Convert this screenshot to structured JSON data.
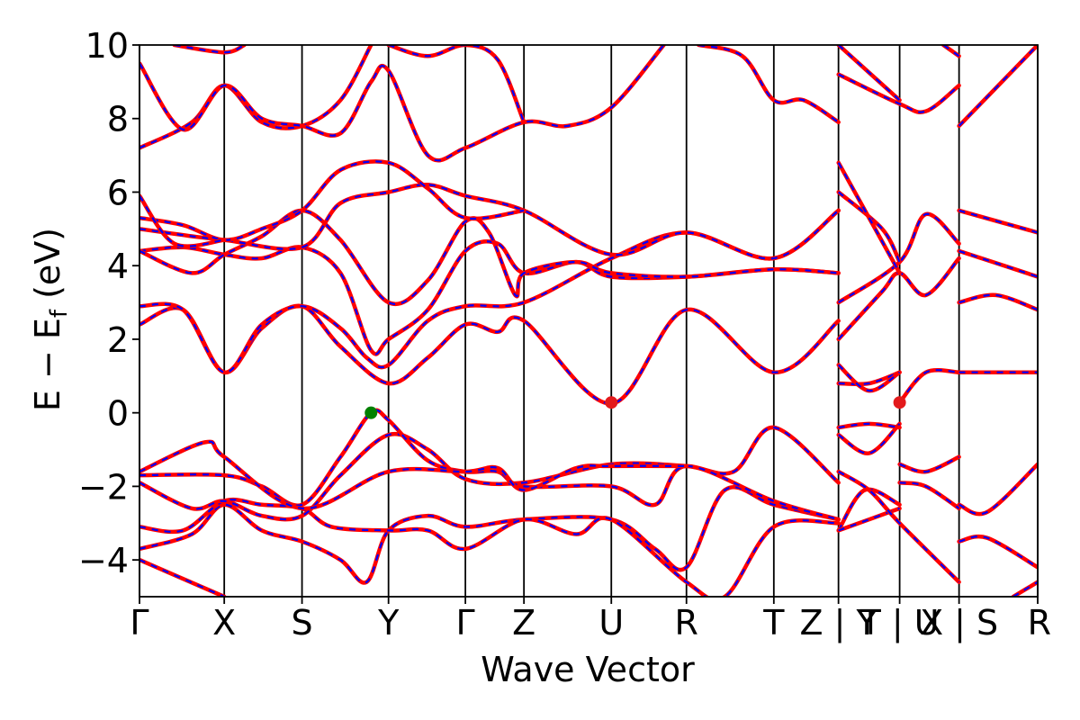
{
  "chart_data": {
    "type": "line",
    "title": "",
    "xlabel": "Wave Vector",
    "ylabel": "E − E",
    "ylabel_sub": "f",
    "ylabel_unit": "(eV)",
    "ylim": [
      -5,
      10
    ],
    "yticks": [
      -4,
      -2,
      0,
      2,
      4,
      6,
      8,
      10
    ],
    "ytick_labels": [
      "−4",
      "−2",
      "0",
      "2",
      "4",
      "6",
      "8",
      "10"
    ],
    "xlim": [
      0,
      10.28
    ],
    "kpoint_positions": [
      0,
      0.97,
      1.86,
      2.85,
      3.73,
      4.4,
      5.4,
      6.26,
      7.26,
      8.0,
      8.7,
      9.38,
      10.28
    ],
    "kpoint_labels": [
      "Γ",
      "X",
      "S",
      "Y",
      "Γ",
      "Z",
      "U",
      "R",
      "T",
      "Z | Y",
      "T | U",
      "X | S",
      "R"
    ],
    "segment_breaks": [
      8.0,
      8.7,
      9.38
    ],
    "series_colors": {
      "up": "#ff0000",
      "down": "#0000ff"
    },
    "vbm": {
      "x": 2.65,
      "y": 0.0,
      "color": "#008000"
    },
    "cbm": [
      {
        "x": 5.4,
        "y": 0.28,
        "color": "#e31a1c"
      },
      {
        "x": 8.7,
        "y": 0.28,
        "color": "#e31a1c"
      }
    ],
    "bands": [
      [
        [
          0,
          -4.0
        ],
        [
          0.97,
          -5.0
        ]
      ],
      [
        [
          0,
          -3.7
        ],
        [
          0.6,
          -3.3
        ],
        [
          0.97,
          -2.5
        ],
        [
          1.4,
          -3.2
        ],
        [
          1.86,
          -3.5
        ],
        [
          2.3,
          -4.0
        ],
        [
          2.6,
          -4.6
        ],
        [
          2.85,
          -3.2
        ],
        [
          3.3,
          -2.8
        ],
        [
          3.73,
          -3.1
        ],
        [
          4.4,
          -2.9
        ],
        [
          5.4,
          -2.9
        ],
        [
          5.9,
          -3.7
        ],
        [
          6.26,
          -4.2
        ],
        [
          6.7,
          -2.1
        ],
        [
          7.26,
          -2.5
        ],
        [
          8.0,
          -2.9
        ]
      ],
      [
        [
          0,
          -3.1
        ],
        [
          0.5,
          -3.2
        ],
        [
          0.97,
          -2.4
        ],
        [
          1.4,
          -2.5
        ],
        [
          1.86,
          -2.6
        ],
        [
          2.2,
          -3.1
        ],
        [
          2.85,
          -3.2
        ],
        [
          3.3,
          -3.2
        ],
        [
          3.73,
          -3.7
        ],
        [
          4.4,
          -2.9
        ],
        [
          5.0,
          -3.3
        ],
        [
          5.4,
          -2.9
        ],
        [
          6.26,
          -4.6
        ],
        [
          6.7,
          -5.0
        ],
        [
          7.26,
          -3.1
        ],
        [
          8.0,
          -3.0
        ]
      ],
      [
        [
          0,
          -1.9
        ],
        [
          0.6,
          -2.6
        ],
        [
          0.97,
          -2.4
        ],
        [
          1.4,
          -2.8
        ],
        [
          1.86,
          -2.8
        ],
        [
          2.3,
          -1.7
        ],
        [
          2.85,
          -0.6
        ],
        [
          3.3,
          -1.0
        ],
        [
          3.73,
          -1.8
        ],
        [
          4.4,
          -1.9
        ],
        [
          5.4,
          -1.4
        ],
        [
          6.26,
          -1.45
        ],
        [
          6.8,
          -1.6
        ],
        [
          7.26,
          -0.4
        ],
        [
          8.0,
          -1.9
        ]
      ],
      [
        [
          0,
          -1.7
        ],
        [
          0.97,
          -1.7
        ],
        [
          1.4,
          -2.0
        ],
        [
          1.86,
          -2.5
        ],
        [
          2.3,
          -1.2
        ],
        [
          2.65,
          0.0
        ],
        [
          2.85,
          -0.2
        ],
        [
          3.3,
          -1.3
        ],
        [
          3.73,
          -1.6
        ],
        [
          4.1,
          -1.6
        ],
        [
          4.4,
          -2.0
        ],
        [
          5.4,
          -2.0
        ],
        [
          5.9,
          -2.5
        ],
        [
          6.26,
          -1.45
        ],
        [
          7.26,
          -2.4
        ],
        [
          8.0,
          -2.9
        ]
      ],
      [
        [
          0,
          -1.6
        ],
        [
          0.75,
          -0.8
        ],
        [
          0.97,
          -1.2
        ],
        [
          1.86,
          -2.6
        ],
        [
          2.85,
          -1.6
        ],
        [
          3.73,
          -1.6
        ],
        [
          4.1,
          -1.5
        ],
        [
          4.4,
          -2.1
        ],
        [
          5.0,
          -1.5
        ],
        [
          5.4,
          -1.45
        ],
        [
          6.26,
          -1.45
        ]
      ],
      [
        [
          0,
          2.4
        ],
        [
          0.5,
          2.8
        ],
        [
          0.97,
          1.1
        ],
        [
          1.4,
          2.3
        ],
        [
          1.86,
          2.9
        ],
        [
          2.3,
          1.8
        ],
        [
          2.85,
          0.8
        ],
        [
          3.3,
          1.5
        ],
        [
          3.73,
          2.4
        ],
        [
          4.1,
          2.2
        ],
        [
          4.4,
          2.5
        ],
        [
          5.4,
          0.25
        ],
        [
          6.26,
          2.8
        ],
        [
          7.26,
          1.1
        ],
        [
          8.0,
          2.5
        ]
      ],
      [
        [
          0,
          2.9
        ],
        [
          0.5,
          2.8
        ],
        [
          0.97,
          1.1
        ],
        [
          1.4,
          2.4
        ],
        [
          1.86,
          2.9
        ],
        [
          2.3,
          2.3
        ],
        [
          2.6,
          1.5
        ],
        [
          2.85,
          1.3
        ],
        [
          3.3,
          2.5
        ],
        [
          3.73,
          2.9
        ],
        [
          4.4,
          3.0
        ],
        [
          5.4,
          4.2
        ],
        [
          6.26,
          4.9
        ],
        [
          7.26,
          4.2
        ],
        [
          8.0,
          5.5
        ]
      ],
      [
        [
          0,
          4.4
        ],
        [
          0.5,
          4.5
        ],
        [
          0.97,
          4.3
        ],
        [
          1.4,
          4.2
        ],
        [
          1.86,
          4.5
        ],
        [
          2.3,
          3.8
        ],
        [
          2.65,
          1.7
        ],
        [
          2.85,
          2.0
        ],
        [
          3.3,
          2.8
        ],
        [
          3.73,
          4.4
        ],
        [
          4.1,
          4.6
        ],
        [
          4.4,
          3.8
        ],
        [
          5.0,
          4.1
        ],
        [
          5.4,
          3.7
        ],
        [
          6.26,
          3.7
        ],
        [
          7.26,
          3.9
        ],
        [
          8.0,
          3.8
        ]
      ],
      [
        [
          0,
          4.4
        ],
        [
          0.6,
          3.8
        ],
        [
          0.97,
          4.3
        ],
        [
          1.4,
          4.8
        ],
        [
          1.86,
          5.5
        ],
        [
          2.3,
          4.7
        ],
        [
          2.85,
          3.0
        ],
        [
          3.3,
          3.6
        ],
        [
          3.73,
          5.2
        ],
        [
          4.0,
          4.9
        ],
        [
          4.3,
          3.2
        ],
        [
          4.4,
          3.8
        ],
        [
          5.0,
          4.1
        ],
        [
          5.4,
          3.8
        ],
        [
          6.26,
          3.7
        ],
        [
          7.26,
          3.9
        ],
        [
          8.0,
          3.8
        ]
      ],
      [
        [
          0,
          5.0
        ],
        [
          0.6,
          4.8
        ],
        [
          0.97,
          4.7
        ],
        [
          1.86,
          4.5
        ],
        [
          2.3,
          5.7
        ],
        [
          2.85,
          6.0
        ],
        [
          3.3,
          6.2
        ],
        [
          3.73,
          5.9
        ],
        [
          4.4,
          5.5
        ],
        [
          5.4,
          4.3
        ],
        [
          6.26,
          4.9
        ],
        [
          7.26,
          4.2
        ],
        [
          8.0,
          5.5
        ]
      ],
      [
        [
          0,
          5.3
        ],
        [
          0.5,
          5.1
        ],
        [
          0.97,
          4.7
        ],
        [
          1.4,
          5.0
        ],
        [
          1.86,
          5.5
        ],
        [
          2.3,
          6.6
        ],
        [
          2.85,
          6.8
        ],
        [
          3.3,
          6.1
        ],
        [
          3.73,
          5.3
        ],
        [
          4.4,
          5.5
        ]
      ],
      [
        [
          0,
          5.9
        ],
        [
          0.4,
          4.6
        ],
        [
          0.97,
          4.7
        ]
      ],
      [
        [
          0,
          7.2
        ],
        [
          0.6,
          7.9
        ],
        [
          0.97,
          8.9
        ],
        [
          1.4,
          7.9
        ],
        [
          1.86,
          7.8
        ],
        [
          2.3,
          8.5
        ],
        [
          2.65,
          10.0
        ]
      ],
      [
        [
          0,
          9.5
        ],
        [
          0.5,
          7.7
        ],
        [
          0.97,
          8.9
        ],
        [
          1.4,
          8.0
        ],
        [
          1.86,
          7.8
        ],
        [
          2.3,
          7.6
        ],
        [
          2.65,
          9.0
        ],
        [
          2.85,
          9.3
        ],
        [
          3.3,
          7.0
        ],
        [
          3.73,
          7.2
        ],
        [
          4.4,
          7.9
        ],
        [
          4.9,
          7.8
        ],
        [
          5.4,
          8.3
        ],
        [
          6.0,
          10.0
        ]
      ],
      [
        [
          0.4,
          10.0
        ],
        [
          0.97,
          9.8
        ],
        [
          1.2,
          10.0
        ]
      ],
      [
        [
          2.85,
          10.0
        ],
        [
          3.3,
          9.7
        ],
        [
          3.73,
          10.0
        ],
        [
          4.1,
          9.6
        ],
        [
          4.4,
          7.9
        ]
      ],
      [
        [
          6.4,
          10.0
        ],
        [
          6.9,
          9.7
        ],
        [
          7.26,
          8.5
        ],
        [
          7.6,
          8.5
        ],
        [
          8.0,
          7.9
        ]
      ],
      [
        [
          8.0,
          -3.2
        ],
        [
          8.3,
          -2.1
        ],
        [
          8.7,
          -2.5
        ]
      ],
      [
        [
          8.0,
          -3.2
        ],
        [
          8.7,
          -2.6
        ]
      ],
      [
        [
          8.0,
          -1.6
        ],
        [
          8.35,
          -2.1
        ],
        [
          8.7,
          -3.0
        ],
        [
          9.38,
          -4.6
        ]
      ],
      [
        [
          8.0,
          -0.6
        ],
        [
          8.35,
          -1.1
        ],
        [
          8.7,
          -0.3
        ]
      ],
      [
        [
          8.0,
          -0.4
        ],
        [
          8.35,
          -0.3
        ],
        [
          8.7,
          -0.4
        ]
      ],
      [
        [
          8.0,
          0.8
        ],
        [
          8.35,
          0.8
        ],
        [
          8.7,
          1.1
        ]
      ],
      [
        [
          8.0,
          1.3
        ],
        [
          8.35,
          0.6
        ],
        [
          8.7,
          1.1
        ]
      ],
      [
        [
          8.0,
          2.0
        ],
        [
          8.5,
          3.3
        ],
        [
          8.7,
          3.8
        ],
        [
          9.0,
          3.2
        ],
        [
          9.38,
          4.2
        ]
      ],
      [
        [
          8.0,
          3.0
        ],
        [
          8.7,
          4.1
        ],
        [
          9.0,
          5.4
        ],
        [
          9.38,
          4.6
        ]
      ],
      [
        [
          8.0,
          6.0
        ],
        [
          8.5,
          5.0
        ],
        [
          8.7,
          4.1
        ]
      ],
      [
        [
          8.0,
          6.8
        ],
        [
          8.7,
          3.8
        ]
      ],
      [
        [
          8.0,
          9.2
        ],
        [
          8.7,
          8.4
        ],
        [
          9.0,
          8.2
        ],
        [
          9.38,
          8.9
        ]
      ],
      [
        [
          8.0,
          10.0
        ],
        [
          8.7,
          8.5
        ]
      ],
      [
        [
          8.7,
          -1.4
        ],
        [
          9.0,
          -1.6
        ],
        [
          9.38,
          -1.2
        ]
      ],
      [
        [
          8.7,
          -1.9
        ],
        [
          9.0,
          -2.0
        ],
        [
          9.38,
          -2.6
        ]
      ],
      [
        [
          8.7,
          0.28
        ],
        [
          9.0,
          1.1
        ],
        [
          9.38,
          1.1
        ]
      ],
      [
        [
          9.38,
          -3.5
        ],
        [
          9.7,
          -3.4
        ],
        [
          10.28,
          -4.2
        ]
      ],
      [
        [
          9.38,
          -2.5
        ],
        [
          9.7,
          -2.7
        ],
        [
          10.28,
          -1.4
        ]
      ],
      [
        [
          9.38,
          1.1
        ],
        [
          10.28,
          1.1
        ]
      ],
      [
        [
          9.38,
          3.0
        ],
        [
          9.8,
          3.2
        ],
        [
          10.28,
          2.8
        ]
      ],
      [
        [
          9.38,
          4.4
        ],
        [
          10.28,
          3.7
        ]
      ],
      [
        [
          9.38,
          5.5
        ],
        [
          10.28,
          4.9
        ]
      ],
      [
        [
          9.38,
          7.8
        ],
        [
          10.28,
          10.0
        ]
      ],
      [
        [
          9.38,
          9.7
        ],
        [
          9.2,
          10.0
        ]
      ],
      [
        [
          10.0,
          -5.0
        ],
        [
          10.28,
          -4.6
        ]
      ]
    ]
  }
}
